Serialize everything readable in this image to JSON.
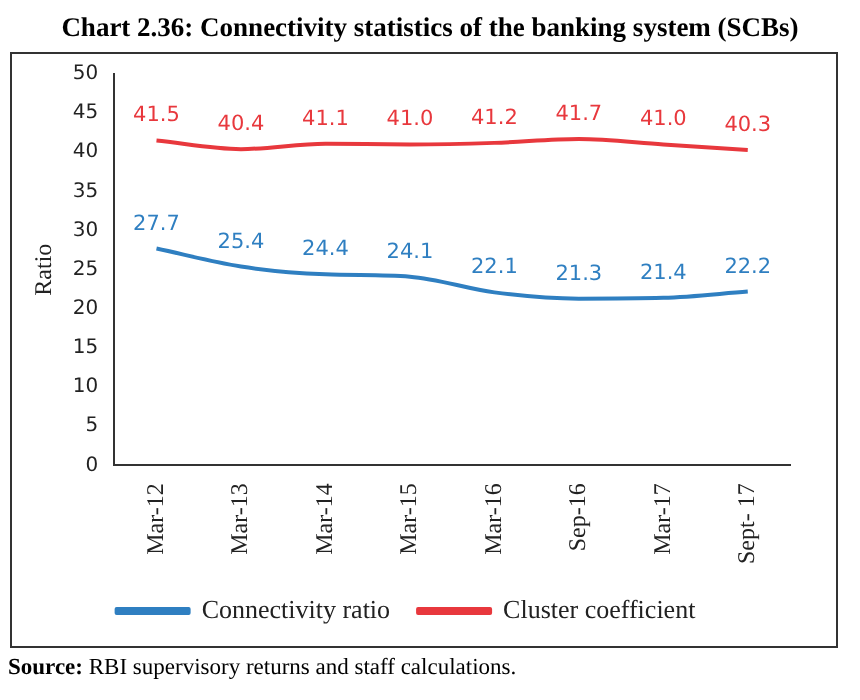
{
  "chart_data": {
    "type": "line",
    "title": "Chart 2.36: Connectivity statistics of the banking system (SCBs)",
    "ylabel": "Ratio",
    "categories": [
      "Mar-12",
      "Mar-13",
      "Mar-14",
      "Mar-15",
      "Mar-16",
      "Sep-16",
      "Mar-17",
      "Sept- 17"
    ],
    "series": [
      {
        "name": "Connectivity ratio",
        "color": "#2f7fc1",
        "values": [
          27.7,
          25.4,
          24.4,
          24.1,
          22.1,
          21.3,
          21.4,
          22.2
        ],
        "value_labels": [
          "27.7",
          "25.4",
          "24.4",
          "24.1",
          "22.1",
          "21.3",
          "21.4",
          "22.2"
        ]
      },
      {
        "name": "Cluster coefficient",
        "color": "#e8383d",
        "values": [
          41.5,
          40.4,
          41.1,
          41.0,
          41.2,
          41.7,
          41.0,
          40.3
        ],
        "value_labels": [
          "41.5",
          "40.4",
          "41.1",
          "41.0",
          "41.2",
          "41.7",
          "41.0",
          "40.3"
        ]
      }
    ],
    "ylim": [
      0,
      50
    ],
    "yticks": [
      0,
      5,
      10,
      15,
      20,
      25,
      30,
      35,
      40,
      45,
      50
    ],
    "grid": false,
    "legend": "bottom",
    "marker": "none",
    "line_style": "solid",
    "annotations": [
      "Source: RBI supervisory returns and staff calculations."
    ]
  }
}
